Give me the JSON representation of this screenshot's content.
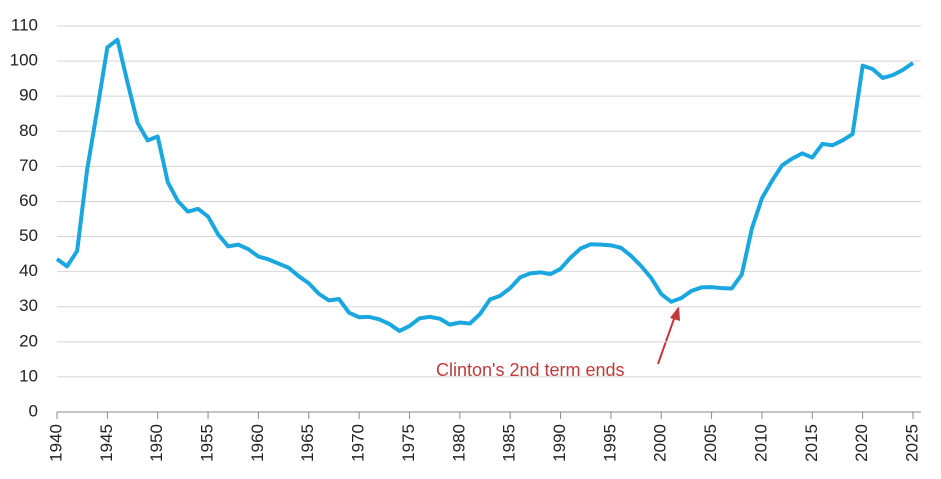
{
  "chart_data": {
    "type": "line",
    "annotation": "Clinton's 2nd term ends",
    "x": [
      1940,
      1941,
      1942,
      1943,
      1944,
      1945,
      1946,
      1947,
      1948,
      1949,
      1950,
      1951,
      1952,
      1953,
      1954,
      1955,
      1956,
      1957,
      1958,
      1959,
      1960,
      1961,
      1962,
      1963,
      1964,
      1965,
      1966,
      1967,
      1968,
      1969,
      1970,
      1971,
      1972,
      1973,
      1974,
      1975,
      1976,
      1977,
      1978,
      1979,
      1980,
      1981,
      1982,
      1983,
      1984,
      1985,
      1986,
      1987,
      1988,
      1989,
      1990,
      1991,
      1992,
      1993,
      1994,
      1995,
      1996,
      1997,
      1998,
      1999,
      2000,
      2001,
      2002,
      2003,
      2004,
      2005,
      2006,
      2007,
      2008,
      2009,
      2010,
      2011,
      2012,
      2013,
      2014,
      2015,
      2016,
      2017,
      2018,
      2019,
      2020,
      2021,
      2022,
      2023,
      2024,
      2025
    ],
    "series": [
      {
        "color": "#1aa7e0",
        "values": [
          43.6,
          41.5,
          45.9,
          69.2,
          86.2,
          103.9,
          106.1,
          93.9,
          82.4,
          77.4,
          78.5,
          65.5,
          60.1,
          57.1,
          57.9,
          55.7,
          50.6,
          47.2,
          47.7,
          46.4,
          44.3,
          43.5,
          42.3,
          41.1,
          38.7,
          36.7,
          33.7,
          31.8,
          32.2,
          28.3,
          27.0,
          27.1,
          26.4,
          25.1,
          23.1,
          24.5,
          26.7,
          27.1,
          26.6,
          24.9,
          25.5,
          25.2,
          27.9,
          32.1,
          33.1,
          35.3,
          38.4,
          39.5,
          39.8,
          39.3,
          40.8,
          44.0,
          46.6,
          47.8,
          47.7,
          47.5,
          46.8,
          44.5,
          41.6,
          38.2,
          33.6,
          31.4,
          32.5,
          34.5,
          35.5,
          35.6,
          35.3,
          35.2,
          39.2,
          52.3,
          60.9,
          65.9,
          70.3,
          72.2,
          73.7,
          72.5,
          76.4,
          76.0,
          77.4,
          79.2,
          98.7,
          97.7,
          95.2,
          96.0,
          97.5,
          99.5
        ]
      }
    ],
    "xlim": [
      1940,
      2025
    ],
    "xticks": [
      1940,
      1945,
      1950,
      1955,
      1960,
      1965,
      1970,
      1975,
      1980,
      1985,
      1990,
      1995,
      2000,
      2005,
      2010,
      2015,
      2020,
      2025
    ],
    "ylim": [
      0,
      110
    ],
    "yticks": [
      0,
      10,
      20,
      30,
      40,
      50,
      60,
      70,
      80,
      90,
      100,
      110
    ],
    "grid": true
  }
}
